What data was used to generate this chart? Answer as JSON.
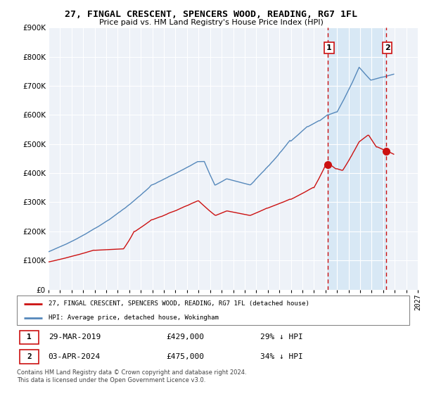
{
  "title": "27, FINGAL CRESCENT, SPENCERS WOOD, READING, RG7 1FL",
  "subtitle": "Price paid vs. HM Land Registry's House Price Index (HPI)",
  "background_color": "#ffffff",
  "plot_bg_color": "#eef2f8",
  "grid_color": "#ffffff",
  "hpi_color": "#5588bb",
  "price_color": "#cc1111",
  "shade_color": "#d8e8f5",
  "annotation1_date": "29-MAR-2019",
  "annotation1_price": 429000,
  "annotation1_pct": "29% ↓ HPI",
  "annotation2_date": "03-APR-2024",
  "annotation2_price": 475000,
  "annotation2_pct": "34% ↓ HPI",
  "legend_label1": "27, FINGAL CRESCENT, SPENCERS WOOD, READING, RG7 1FL (detached house)",
  "legend_label2": "HPI: Average price, detached house, Wokingham",
  "footer": "Contains HM Land Registry data © Crown copyright and database right 2024.\nThis data is licensed under the Open Government Licence v3.0.",
  "sale1_x": 2019.22,
  "sale1_y": 429000,
  "sale2_x": 2024.25,
  "sale2_y": 475000,
  "xmin": 1995,
  "xmax": 2027,
  "ymin": 0,
  "ymax": 900000,
  "yticks": [
    0,
    100000,
    200000,
    300000,
    400000,
    500000,
    600000,
    700000,
    800000,
    900000
  ],
  "xticks": [
    1995,
    1996,
    1997,
    1998,
    1999,
    2000,
    2001,
    2002,
    2003,
    2004,
    2005,
    2006,
    2007,
    2008,
    2009,
    2010,
    2011,
    2012,
    2013,
    2014,
    2015,
    2016,
    2017,
    2018,
    2019,
    2020,
    2021,
    2022,
    2023,
    2024,
    2025,
    2026,
    2027
  ]
}
